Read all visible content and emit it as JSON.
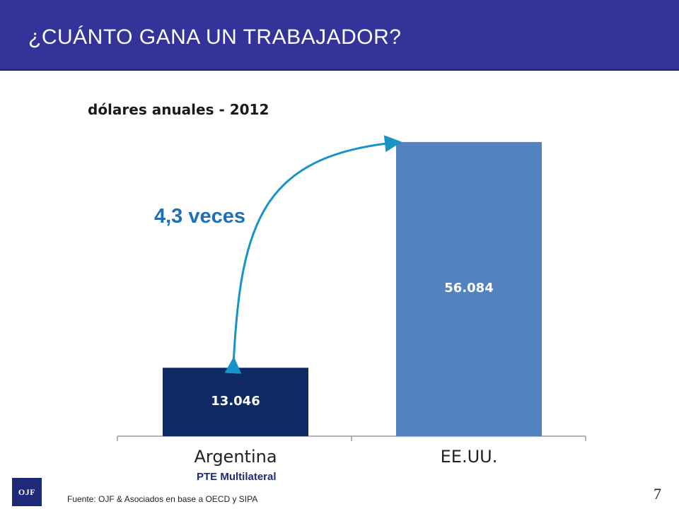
{
  "header": {
    "title": "¿CUÁNTO GANA UN TRABAJADOR?"
  },
  "colors": {
    "header_bg": "#333399",
    "bar_argentina": "#0f2a63",
    "bar_eeuu": "#5282c0",
    "arrow": "#1793c6"
  },
  "chart_data": {
    "type": "bar",
    "title": "dólares anuales - 2012",
    "categories": [
      "Argentina",
      "EE.UU."
    ],
    "values": [
      13046,
      56084
    ],
    "value_labels": [
      "13.046",
      "56.084"
    ],
    "ylim": [
      0,
      65000
    ],
    "grid": false,
    "annotation": "4,3 veces",
    "category_note": "PTE Multilateral"
  },
  "footer": {
    "source": "Fuente: OJF & Asociados en base a OECD y SIPA",
    "page_number": "7",
    "logo_text": "OJF"
  }
}
